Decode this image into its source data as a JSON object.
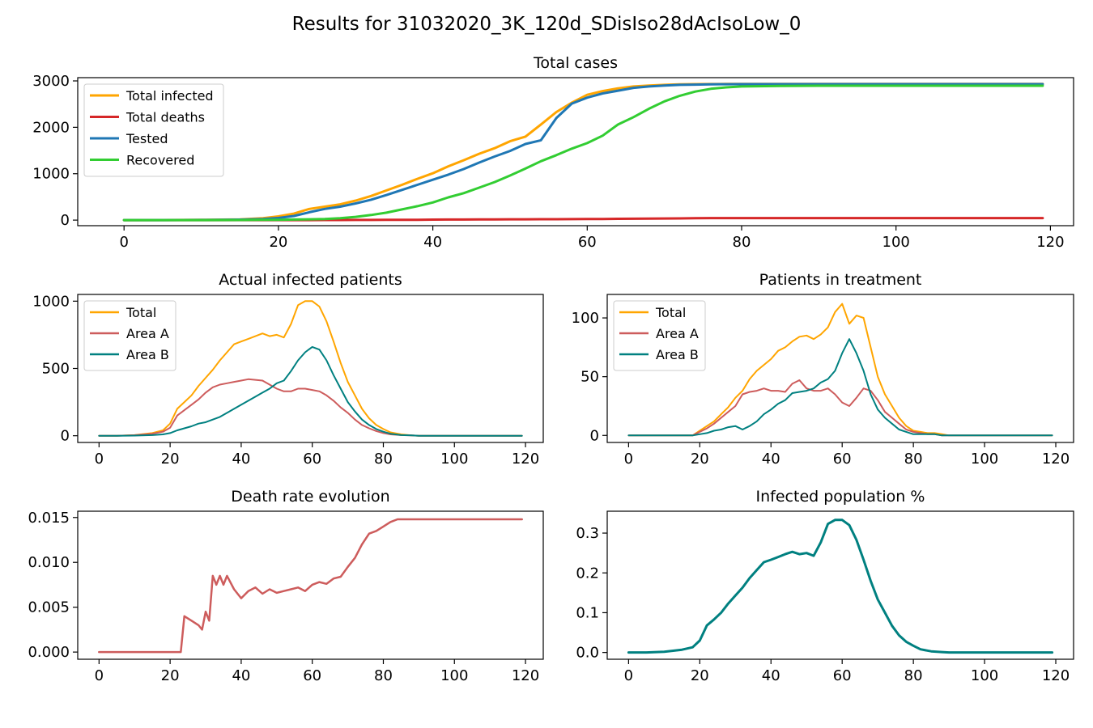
{
  "figure_title": "Results for 31032020_3K_120d_SDisIso28dAcIsoLow_0",
  "chart_data": [
    {
      "id": "total_cases",
      "type": "line",
      "title": "Total cases",
      "xlim": [
        -6,
        123
      ],
      "ylim": [
        -120,
        3070
      ],
      "xticks": [
        0,
        20,
        40,
        60,
        80,
        100,
        120
      ],
      "yticks": [
        0,
        1000,
        2000,
        3000
      ],
      "legend": "upper-left",
      "x": [
        0,
        5,
        10,
        15,
        18,
        20,
        22,
        24,
        26,
        28,
        30,
        32,
        34,
        36,
        38,
        40,
        42,
        44,
        46,
        48,
        50,
        52,
        54,
        56,
        58,
        60,
        62,
        64,
        66,
        68,
        70,
        72,
        74,
        76,
        78,
        80,
        85,
        90,
        100,
        110,
        119
      ],
      "series": [
        {
          "name": "Total infected",
          "color": "#FFA500",
          "width": 3,
          "values": [
            0,
            2,
            5,
            15,
            40,
            80,
            140,
            240,
            290,
            340,
            420,
            520,
            640,
            760,
            890,
            1010,
            1160,
            1290,
            1430,
            1550,
            1700,
            1800,
            2060,
            2330,
            2530,
            2700,
            2780,
            2840,
            2880,
            2900,
            2915,
            2925,
            2930,
            2932,
            2934,
            2935,
            2935,
            2935,
            2935,
            2935,
            2935
          ]
        },
        {
          "name": "Total deaths",
          "color": "#D62728",
          "width": 3,
          "values": [
            0,
            0,
            0,
            0,
            0,
            0,
            0,
            1,
            2,
            2,
            3,
            4,
            5,
            6,
            8,
            10,
            12,
            13,
            15,
            16,
            17,
            18,
            19,
            20,
            21,
            23,
            25,
            28,
            30,
            33,
            35,
            37,
            40,
            43,
            44,
            44,
            44,
            44,
            44,
            44,
            44
          ]
        },
        {
          "name": "Tested",
          "color": "#1F77B4",
          "width": 3,
          "values": [
            0,
            1,
            3,
            10,
            25,
            45,
            90,
            170,
            240,
            290,
            360,
            440,
            540,
            650,
            760,
            870,
            980,
            1100,
            1240,
            1370,
            1490,
            1640,
            1720,
            2200,
            2510,
            2640,
            2730,
            2790,
            2850,
            2880,
            2900,
            2915,
            2920,
            2925,
            2928,
            2930,
            2930,
            2930,
            2930,
            2930,
            2930
          ]
        },
        {
          "name": "Recovered",
          "color": "#32CD32",
          "width": 3,
          "values": [
            0,
            0,
            1,
            2,
            5,
            8,
            12,
            18,
            25,
            40,
            70,
            110,
            160,
            230,
            300,
            380,
            490,
            580,
            700,
            820,
            960,
            1110,
            1270,
            1400,
            1540,
            1660,
            1820,
            2060,
            2220,
            2400,
            2560,
            2680,
            2770,
            2830,
            2860,
            2880,
            2890,
            2895,
            2895,
            2895,
            2895
          ]
        }
      ]
    },
    {
      "id": "actual_infected",
      "type": "line",
      "title": "Actual infected patients",
      "xlim": [
        -6,
        125
      ],
      "ylim": [
        -50,
        1050
      ],
      "xticks": [
        0,
        20,
        40,
        60,
        80,
        100,
        120
      ],
      "yticks": [
        0,
        500,
        1000
      ],
      "legend": "upper-left",
      "x": [
        0,
        5,
        10,
        15,
        18,
        20,
        22,
        24,
        26,
        28,
        30,
        32,
        34,
        36,
        38,
        40,
        42,
        44,
        46,
        48,
        50,
        52,
        54,
        56,
        58,
        60,
        62,
        64,
        66,
        68,
        70,
        72,
        74,
        76,
        78,
        80,
        82,
        85,
        88,
        90,
        95,
        100,
        110,
        119
      ],
      "series": [
        {
          "name": "Total",
          "color": "#FFA500",
          "width": 2,
          "values": [
            0,
            0,
            5,
            20,
            40,
            90,
            200,
            250,
            300,
            370,
            430,
            490,
            560,
            620,
            680,
            700,
            720,
            740,
            760,
            740,
            750,
            730,
            830,
            970,
            1000,
            1000,
            960,
            850,
            700,
            540,
            400,
            300,
            200,
            130,
            80,
            50,
            25,
            10,
            3,
            0,
            0,
            0,
            0,
            0
          ]
        },
        {
          "name": "Area A",
          "color": "#CD5C5C",
          "width": 2,
          "values": [
            0,
            0,
            4,
            15,
            30,
            60,
            150,
            190,
            230,
            270,
            320,
            360,
            380,
            390,
            400,
            410,
            420,
            415,
            410,
            380,
            350,
            330,
            330,
            350,
            350,
            340,
            330,
            300,
            260,
            210,
            170,
            120,
            80,
            55,
            35,
            20,
            10,
            5,
            2,
            0,
            0,
            0,
            0,
            0
          ]
        },
        {
          "name": "Area B",
          "color": "#008080",
          "width": 2,
          "values": [
            0,
            0,
            1,
            5,
            10,
            20,
            40,
            55,
            70,
            90,
            100,
            120,
            140,
            170,
            200,
            230,
            260,
            290,
            320,
            350,
            390,
            410,
            480,
            560,
            620,
            660,
            640,
            560,
            450,
            350,
            250,
            180,
            120,
            80,
            50,
            30,
            15,
            5,
            2,
            0,
            0,
            0,
            0,
            0
          ]
        }
      ]
    },
    {
      "id": "in_treatment",
      "type": "line",
      "title": "Patients in treatment",
      "xlim": [
        -6,
        125
      ],
      "ylim": [
        -6,
        120
      ],
      "xticks": [
        0,
        20,
        40,
        60,
        80,
        100,
        120
      ],
      "yticks": [
        0,
        50,
        100
      ],
      "legend": "upper-left",
      "x": [
        0,
        5,
        10,
        15,
        18,
        20,
        22,
        24,
        26,
        28,
        30,
        32,
        34,
        36,
        38,
        40,
        42,
        44,
        46,
        48,
        50,
        52,
        54,
        56,
        58,
        60,
        62,
        64,
        66,
        68,
        70,
        72,
        74,
        76,
        78,
        80,
        82,
        84,
        86,
        88,
        90,
        95,
        100,
        110,
        119
      ],
      "series": [
        {
          "name": "Total",
          "color": "#FFA500",
          "width": 2,
          "values": [
            0,
            0,
            0,
            0,
            0,
            4,
            8,
            12,
            18,
            24,
            32,
            38,
            48,
            55,
            60,
            65,
            72,
            75,
            80,
            84,
            85,
            82,
            86,
            92,
            105,
            112,
            95,
            102,
            100,
            75,
            50,
            35,
            25,
            15,
            8,
            4,
            3,
            2,
            2,
            1,
            0,
            0,
            0,
            0,
            0
          ]
        },
        {
          "name": "Area A",
          "color": "#CD5C5C",
          "width": 2,
          "values": [
            0,
            0,
            0,
            0,
            0,
            3,
            6,
            10,
            15,
            20,
            25,
            35,
            37,
            38,
            40,
            38,
            38,
            37,
            44,
            47,
            40,
            38,
            38,
            40,
            35,
            28,
            25,
            32,
            40,
            38,
            30,
            20,
            15,
            10,
            5,
            3,
            2,
            1,
            1,
            0,
            0,
            0,
            0,
            0,
            0
          ]
        },
        {
          "name": "Area B",
          "color": "#008080",
          "width": 2,
          "values": [
            0,
            0,
            0,
            0,
            0,
            1,
            2,
            4,
            5,
            7,
            8,
            5,
            8,
            12,
            18,
            22,
            27,
            30,
            36,
            37,
            38,
            40,
            45,
            48,
            55,
            70,
            82,
            70,
            55,
            35,
            22,
            15,
            10,
            5,
            3,
            1,
            1,
            1,
            1,
            0,
            0,
            0,
            0,
            0,
            0
          ]
        }
      ]
    },
    {
      "id": "death_rate",
      "type": "line",
      "title": "Death rate evolution",
      "xlim": [
        -6,
        125
      ],
      "ylim": [
        -0.0008,
        0.0157
      ],
      "xticks": [
        0,
        20,
        40,
        60,
        80,
        100,
        120
      ],
      "yticks": [
        0.0,
        0.005,
        0.01,
        0.015
      ],
      "ytick_labels": [
        "0.000",
        "0.005",
        "0.010",
        "0.015"
      ],
      "x": [
        0,
        10,
        20,
        23,
        24,
        26,
        28,
        29,
        30,
        31,
        32,
        33,
        34,
        35,
        36,
        38,
        40,
        42,
        44,
        46,
        48,
        50,
        52,
        54,
        56,
        58,
        60,
        62,
        64,
        66,
        68,
        70,
        72,
        74,
        76,
        78,
        80,
        82,
        84,
        90,
        100,
        119
      ],
      "series": [
        {
          "name": "",
          "color": "#CD5C5C",
          "width": 2.5,
          "values": [
            0,
            0,
            0,
            0,
            0.004,
            0.0035,
            0.003,
            0.0025,
            0.0045,
            0.0035,
            0.0085,
            0.0075,
            0.0085,
            0.0075,
            0.0085,
            0.007,
            0.006,
            0.0068,
            0.0072,
            0.0065,
            0.007,
            0.0066,
            0.0068,
            0.007,
            0.0072,
            0.0068,
            0.0075,
            0.0078,
            0.0076,
            0.0082,
            0.0084,
            0.0095,
            0.0105,
            0.012,
            0.0132,
            0.0135,
            0.014,
            0.0145,
            0.0148,
            0.0148,
            0.0148,
            0.0148
          ]
        }
      ]
    },
    {
      "id": "infected_pct",
      "type": "line",
      "title": "Infected population %",
      "xlim": [
        -6,
        125
      ],
      "ylim": [
        -0.017,
        0.355
      ],
      "xticks": [
        0,
        20,
        40,
        60,
        80,
        100,
        120
      ],
      "yticks": [
        0.0,
        0.1,
        0.2,
        0.3
      ],
      "ytick_labels": [
        "0.0",
        "0.1",
        "0.2",
        "0.3"
      ],
      "x": [
        0,
        5,
        10,
        15,
        18,
        20,
        22,
        24,
        26,
        28,
        30,
        32,
        34,
        36,
        38,
        40,
        42,
        44,
        46,
        48,
        50,
        52,
        54,
        56,
        58,
        60,
        62,
        64,
        66,
        68,
        70,
        72,
        74,
        76,
        78,
        80,
        82,
        85,
        88,
        90,
        95,
        100,
        110,
        119
      ],
      "series": [
        {
          "name": "",
          "color": "#008080",
          "width": 3,
          "values": [
            0,
            0,
            0.002,
            0.007,
            0.013,
            0.03,
            0.068,
            0.083,
            0.1,
            0.123,
            0.143,
            0.163,
            0.187,
            0.207,
            0.227,
            0.233,
            0.24,
            0.247,
            0.253,
            0.247,
            0.25,
            0.243,
            0.277,
            0.323,
            0.333,
            0.333,
            0.32,
            0.283,
            0.233,
            0.18,
            0.133,
            0.1,
            0.067,
            0.043,
            0.027,
            0.017,
            0.008,
            0.003,
            0.001,
            0,
            0,
            0,
            0,
            0
          ]
        }
      ]
    }
  ]
}
